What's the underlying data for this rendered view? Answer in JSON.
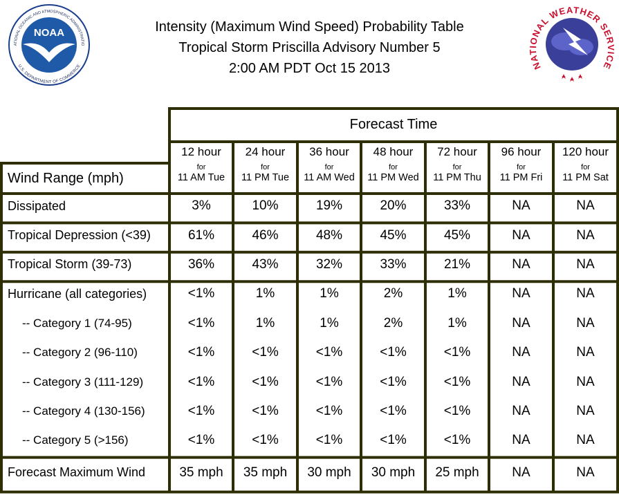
{
  "header": {
    "title_lines": [
      "Intensity (Maximum Wind Speed) Probability Table",
      "Tropical Storm Priscilla Advisory Number 5",
      "2:00 AM PDT Oct 15 2013"
    ],
    "noaa_logo": {
      "center": "NOAA",
      "ring_top": "NATIONAL OCEANIC AND ATMOSPHERIC ADMINISTRATION",
      "ring_bottom": "U.S. DEPARTMENT OF COMMERCE"
    },
    "nws_logo": {
      "ring": "NATIONAL WEATHER SERVICE"
    }
  },
  "table": {
    "group_header": "Forecast Time",
    "row_header": "Wind Range (mph)",
    "columns": [
      {
        "hours": "12 hour",
        "for": "for",
        "time": "11 AM Tue"
      },
      {
        "hours": "24 hour",
        "for": "for",
        "time": "11 PM Tue"
      },
      {
        "hours": "36 hour",
        "for": "for",
        "time": "11 AM Wed"
      },
      {
        "hours": "48 hour",
        "for": "for",
        "time": "11 PM Wed"
      },
      {
        "hours": "72 hour",
        "for": "for",
        "time": "11 PM Thu"
      },
      {
        "hours": "96 hour",
        "for": "for",
        "time": "11 PM Fri"
      },
      {
        "hours": "120 hour",
        "for": "for",
        "time": "11 PM Sat"
      }
    ],
    "sections": [
      [
        {
          "label": "Dissipated",
          "cells": [
            "3%",
            "10%",
            "19%",
            "20%",
            "33%",
            "NA",
            "NA"
          ]
        }
      ],
      [
        {
          "label": "Tropical Depression (<39)",
          "cells": [
            "61%",
            "46%",
            "48%",
            "45%",
            "45%",
            "NA",
            "NA"
          ]
        }
      ],
      [
        {
          "label": "Tropical Storm (39-73)",
          "cells": [
            "36%",
            "43%",
            "32%",
            "33%",
            "21%",
            "NA",
            "NA"
          ]
        }
      ],
      [
        {
          "label": "Hurricane (all categories)",
          "cells": [
            "<1%",
            "1%",
            "1%",
            "2%",
            "1%",
            "NA",
            "NA"
          ]
        },
        {
          "label": "-- Category 1 (74-95)",
          "cells": [
            "<1%",
            "1%",
            "1%",
            "2%",
            "1%",
            "NA",
            "NA"
          ]
        },
        {
          "label": "-- Category 2 (96-110)",
          "cells": [
            "<1%",
            "<1%",
            "<1%",
            "<1%",
            "<1%",
            "NA",
            "NA"
          ]
        },
        {
          "label": "-- Category 3 (111-129)",
          "cells": [
            "<1%",
            "<1%",
            "<1%",
            "<1%",
            "<1%",
            "NA",
            "NA"
          ]
        },
        {
          "label": "-- Category 4 (130-156)",
          "cells": [
            "<1%",
            "<1%",
            "<1%",
            "<1%",
            "<1%",
            "NA",
            "NA"
          ]
        },
        {
          "label": "-- Category 5 (>156)",
          "cells": [
            "<1%",
            "<1%",
            "<1%",
            "<1%",
            "<1%",
            "NA",
            "NA"
          ]
        }
      ],
      [
        {
          "label": "Forecast Maximum Wind",
          "cells": [
            "35 mph",
            "35 mph",
            "30 mph",
            "30 mph",
            "25 mph",
            "NA",
            "NA"
          ]
        }
      ]
    ]
  }
}
